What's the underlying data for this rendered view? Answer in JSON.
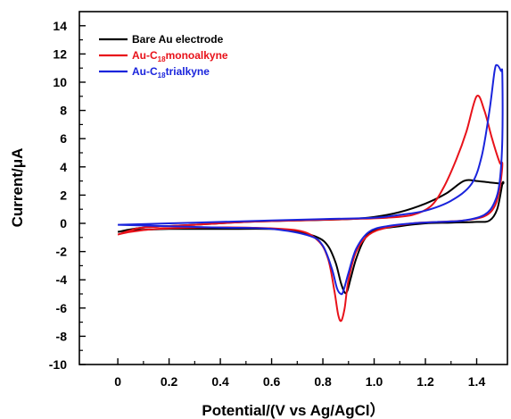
{
  "chart_data": {
    "type": "line",
    "title": "",
    "xlabel": "Potential/(V vs Ag/AgCl）",
    "ylabel": "Current/μA",
    "xlim": [
      -0.15,
      1.52
    ],
    "ylim": [
      -10,
      15
    ],
    "x_ticks": [
      0,
      0.2,
      0.4,
      0.6,
      0.8,
      1.0,
      1.2,
      1.4
    ],
    "x_tick_labels": [
      "0",
      "0.2",
      "0.4",
      "0.6",
      "0.8",
      "1.0",
      "1.2",
      "1.4"
    ],
    "y_ticks": [
      -10,
      -8,
      -6,
      -4,
      -2,
      0,
      2,
      4,
      6,
      8,
      10,
      12,
      14
    ],
    "y_tick_labels": [
      "-10",
      "-8",
      "-6",
      "-4",
      "-2",
      "0",
      "2",
      "4",
      "6",
      "8",
      "10",
      "12",
      "14"
    ],
    "grid": false,
    "legend_position": "top-left",
    "series": [
      {
        "name": "Bare Au electrode",
        "legend_parts": [
          "Bare Au electrode"
        ],
        "color": "#000000",
        "points": [
          [
            0,
            -0.6
          ],
          [
            0.1,
            -0.3
          ],
          [
            0.3,
            -0.1
          ],
          [
            0.5,
            0.1
          ],
          [
            0.7,
            0.2
          ],
          [
            0.9,
            0.3
          ],
          [
            1.0,
            0.45
          ],
          [
            1.1,
            0.8
          ],
          [
            1.2,
            1.4
          ],
          [
            1.28,
            2.1
          ],
          [
            1.35,
            3.0
          ],
          [
            1.4,
            3.0
          ],
          [
            1.45,
            2.9
          ],
          [
            1.5,
            2.8
          ],
          [
            1.5,
            2.8
          ],
          [
            1.48,
            1.0
          ],
          [
            1.45,
            0.2
          ],
          [
            1.4,
            0.1
          ],
          [
            1.3,
            0.05
          ],
          [
            1.2,
            0.0
          ],
          [
            1.1,
            -0.2
          ],
          [
            1.0,
            -0.5
          ],
          [
            0.96,
            -1.2
          ],
          [
            0.93,
            -2.5
          ],
          [
            0.91,
            -3.8
          ],
          [
            0.895,
            -4.8
          ],
          [
            0.885,
            -4.9
          ],
          [
            0.87,
            -4.2
          ],
          [
            0.85,
            -2.8
          ],
          [
            0.82,
            -1.6
          ],
          [
            0.78,
            -1.0
          ],
          [
            0.7,
            -0.6
          ],
          [
            0.6,
            -0.4
          ],
          [
            0.4,
            -0.4
          ],
          [
            0.2,
            -0.4
          ],
          [
            0.05,
            -0.5
          ],
          [
            0,
            -0.6
          ]
        ]
      },
      {
        "name": "Au-C18monoalkyne",
        "legend_parts": [
          "Au-C",
          "18",
          "monoalkyne"
        ],
        "color": "#e8121a",
        "points": [
          [
            0,
            -0.8
          ],
          [
            0.05,
            -0.5
          ],
          [
            0.1,
            -0.3
          ],
          [
            0.3,
            -0.1
          ],
          [
            0.5,
            0.1
          ],
          [
            0.7,
            0.2
          ],
          [
            0.9,
            0.3
          ],
          [
            1.05,
            0.4
          ],
          [
            1.15,
            0.6
          ],
          [
            1.22,
            1.2
          ],
          [
            1.27,
            2.5
          ],
          [
            1.32,
            4.5
          ],
          [
            1.36,
            6.5
          ],
          [
            1.4,
            9.0
          ],
          [
            1.43,
            8.0
          ],
          [
            1.46,
            6.0
          ],
          [
            1.49,
            4.3
          ],
          [
            1.5,
            4.2
          ],
          [
            1.49,
            2.5
          ],
          [
            1.47,
            1.2
          ],
          [
            1.43,
            0.5
          ],
          [
            1.35,
            0.2
          ],
          [
            1.25,
            0.1
          ],
          [
            1.15,
            0.0
          ],
          [
            1.05,
            -0.3
          ],
          [
            0.98,
            -0.8
          ],
          [
            0.93,
            -2.0
          ],
          [
            0.9,
            -4.0
          ],
          [
            0.885,
            -6.0
          ],
          [
            0.872,
            -6.9
          ],
          [
            0.86,
            -6.5
          ],
          [
            0.845,
            -4.8
          ],
          [
            0.82,
            -2.5
          ],
          [
            0.78,
            -1.2
          ],
          [
            0.7,
            -0.5
          ],
          [
            0.5,
            -0.3
          ],
          [
            0.3,
            -0.3
          ],
          [
            0.15,
            -0.4
          ],
          [
            0.05,
            -0.6
          ],
          [
            0,
            -0.8
          ]
        ]
      },
      {
        "name": "Au-C18trialkyne",
        "legend_parts": [
          "Au-C",
          "18",
          "trialkyne"
        ],
        "color": "#1a24dc",
        "points": [
          [
            0,
            -0.1
          ],
          [
            0.2,
            0.0
          ],
          [
            0.4,
            0.1
          ],
          [
            0.6,
            0.2
          ],
          [
            0.8,
            0.3
          ],
          [
            1.0,
            0.4
          ],
          [
            1.1,
            0.6
          ],
          [
            1.2,
            0.9
          ],
          [
            1.3,
            1.6
          ],
          [
            1.38,
            2.8
          ],
          [
            1.42,
            4.8
          ],
          [
            1.45,
            8.0
          ],
          [
            1.47,
            10.8
          ],
          [
            1.48,
            11.2
          ],
          [
            1.495,
            10.8
          ],
          [
            1.5,
            10.5
          ],
          [
            1.5,
            6.0
          ],
          [
            1.49,
            3.0
          ],
          [
            1.47,
            1.5
          ],
          [
            1.43,
            0.6
          ],
          [
            1.35,
            0.2
          ],
          [
            1.25,
            0.1
          ],
          [
            1.15,
            0.0
          ],
          [
            1.05,
            -0.2
          ],
          [
            0.98,
            -0.6
          ],
          [
            0.93,
            -1.8
          ],
          [
            0.9,
            -3.5
          ],
          [
            0.88,
            -4.8
          ],
          [
            0.87,
            -5.0
          ],
          [
            0.855,
            -4.6
          ],
          [
            0.835,
            -3.2
          ],
          [
            0.8,
            -1.6
          ],
          [
            0.75,
            -0.9
          ],
          [
            0.6,
            -0.4
          ],
          [
            0.4,
            -0.3
          ],
          [
            0.2,
            -0.2
          ],
          [
            0,
            -0.1
          ]
        ]
      }
    ]
  }
}
